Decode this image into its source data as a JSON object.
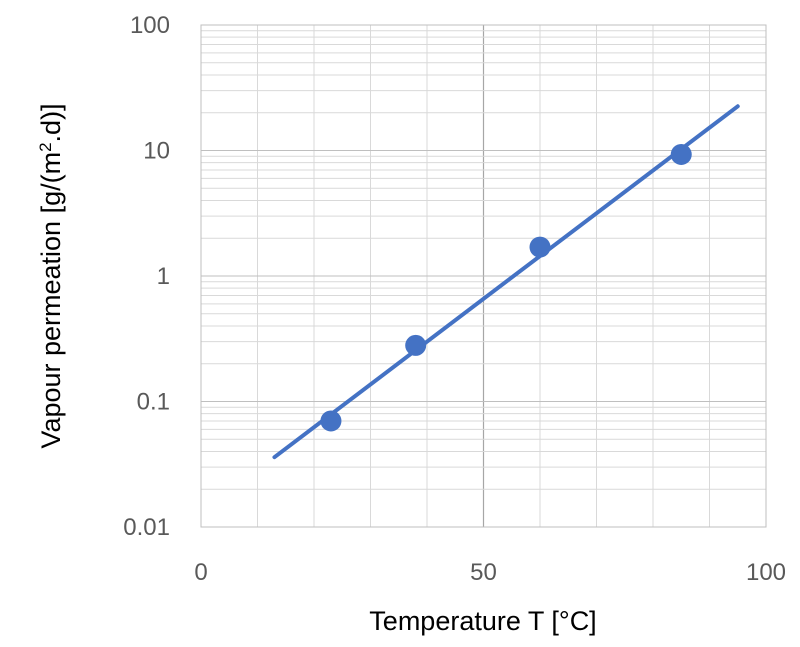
{
  "chart_data": {
    "type": "scatter",
    "title": "",
    "xlabel": "Temperature T [°C]",
    "ylabel_parts": [
      "Vapour permeation [g/(m",
      "2",
      ".d)]"
    ],
    "xlim": [
      0,
      100
    ],
    "ylim": [
      0.01,
      100
    ],
    "yscale": "log",
    "x_ticks": [
      0,
      50,
      100
    ],
    "x_tick_labels": [
      "0",
      "50",
      "100"
    ],
    "y_ticks": [
      0.01,
      0.1,
      1,
      10,
      100
    ],
    "y_tick_labels": [
      "0.01",
      "0.1",
      "1",
      "10",
      "100"
    ],
    "grid": true,
    "legend": "none",
    "series": [
      {
        "kind": "points",
        "color": "#4472C4",
        "x": [
          23,
          38,
          60,
          85
        ],
        "y": [
          0.07,
          0.28,
          1.7,
          9.3
        ]
      },
      {
        "kind": "trendline",
        "color": "#4472C4",
        "x": [
          13,
          95
        ],
        "y": [
          0.036,
          22.5
        ]
      }
    ]
  }
}
